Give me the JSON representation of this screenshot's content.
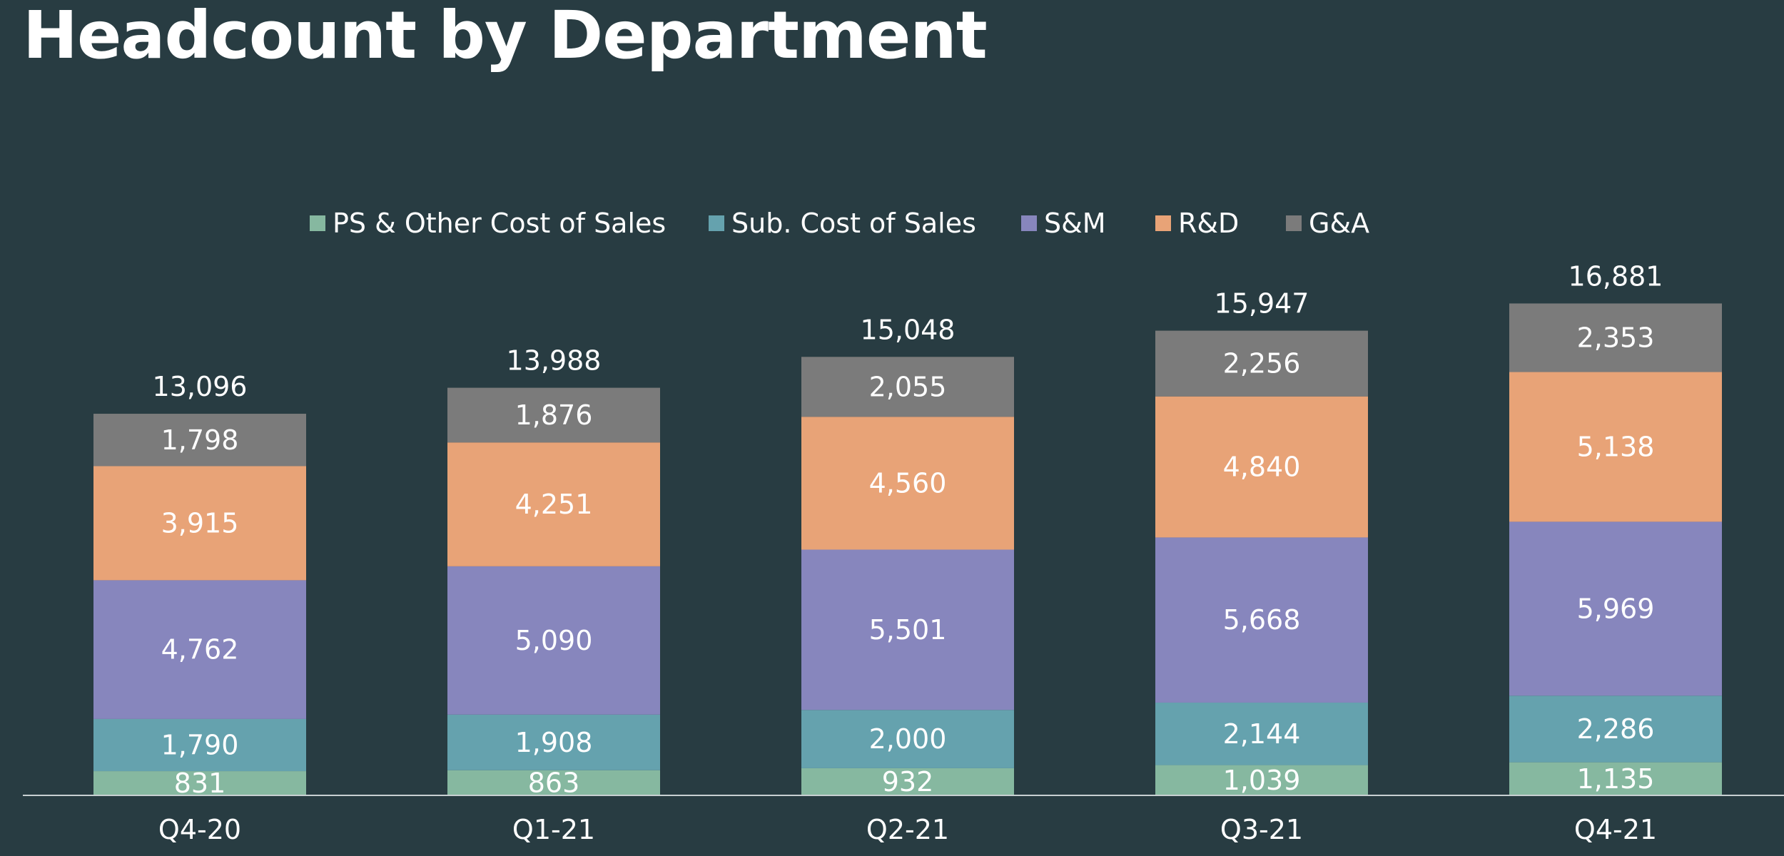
{
  "title": "Headcount by Department",
  "colors": {
    "background": "#283c42",
    "axis": "#c8d0d2"
  },
  "chart_data": {
    "type": "bar",
    "stacked": true,
    "title": "Headcount by Department",
    "legend_position": "top-center",
    "grid": false,
    "ylim": [
      0,
      18000
    ],
    "categories": [
      "Q4-20",
      "Q1-21",
      "Q2-21",
      "Q3-21",
      "Q4-21"
    ],
    "totals": [
      "13,096",
      "13,988",
      "15,048",
      "15,947",
      "16,881"
    ],
    "series": [
      {
        "name": "PS & Other Cost of Sales",
        "color": "#86b8a0",
        "values": [
          831,
          863,
          932,
          1039,
          1135
        ],
        "labels": [
          "831",
          "863",
          "932",
          "1,039",
          "1,135"
        ]
      },
      {
        "name": "Sub. Cost of Sales",
        "color": "#65a2ae",
        "values": [
          1790,
          1908,
          2000,
          2144,
          2286
        ],
        "labels": [
          "1,790",
          "1,908",
          "2,000",
          "2,144",
          "2,286"
        ]
      },
      {
        "name": "S&M",
        "color": "#8786bd",
        "values": [
          4762,
          5090,
          5501,
          5668,
          5969
        ],
        "labels": [
          "4,762",
          "5,090",
          "5,501",
          "5,668",
          "5,969"
        ]
      },
      {
        "name": "R&D",
        "color": "#e8a377",
        "values": [
          3915,
          4251,
          4560,
          4840,
          5138
        ],
        "labels": [
          "3,915",
          "4,251",
          "4,560",
          "4,840",
          "5,138"
        ]
      },
      {
        "name": "G&A",
        "color": "#7b7b7b",
        "values": [
          1798,
          1876,
          2055,
          2256,
          2353
        ],
        "labels": [
          "1,798",
          "1,876",
          "2,055",
          "2,256",
          "2,353"
        ]
      }
    ]
  }
}
